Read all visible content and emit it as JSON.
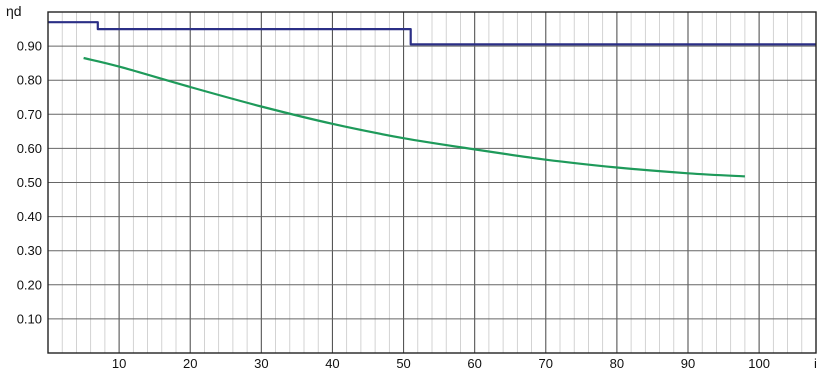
{
  "chart_data": {
    "type": "line",
    "ylabel": "ηd",
    "xlabel": "i",
    "xlim": [
      0,
      108
    ],
    "ylim": [
      0,
      1.0
    ],
    "x_ticks": [
      10,
      20,
      30,
      40,
      50,
      60,
      70,
      80,
      90,
      100
    ],
    "x_tick_labels": [
      "10",
      "20",
      "30",
      "40",
      "50",
      "60",
      "70",
      "80",
      "90",
      "100"
    ],
    "y_ticks": [
      0.1,
      0.2,
      0.3,
      0.4,
      0.5,
      0.6,
      0.7,
      0.8,
      0.9
    ],
    "y_tick_labels": [
      "0.10",
      "0.20",
      "0.30",
      "0.40",
      "0.50",
      "0.60",
      "0.70",
      "0.80",
      "0.90"
    ],
    "grid": true,
    "series": [
      {
        "color": "#2b2f86",
        "step": true,
        "x": [
          0,
          7,
          7,
          51,
          51,
          108
        ],
        "y": [
          0.97,
          0.97,
          0.95,
          0.95,
          0.905,
          0.905
        ]
      },
      {
        "color": "#1e9a5a",
        "x": [
          5,
          10,
          20,
          30,
          40,
          50,
          60,
          70,
          80,
          90,
          98
        ],
        "y": [
          0.865,
          0.84,
          0.78,
          0.723,
          0.672,
          0.63,
          0.597,
          0.567,
          0.544,
          0.527,
          0.518
        ]
      }
    ]
  }
}
